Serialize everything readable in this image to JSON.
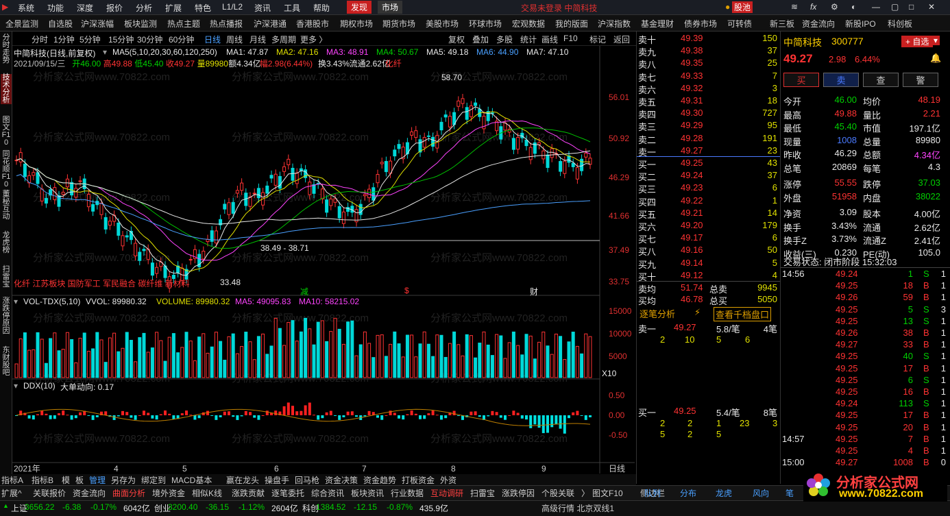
{
  "menu": {
    "items": [
      "系统",
      "功能",
      "深度",
      "报价",
      "分析",
      "扩展",
      "特色",
      "L1/L2",
      "资讯",
      "工具",
      "帮助"
    ],
    "discover": "发现",
    "market": "市场",
    "center": "交易未登录   中简科技",
    "gupool": "股池"
  },
  "tabs": [
    "全景监测",
    "自选股",
    "沪深涨幅",
    "板块监测",
    "热点主题",
    "热点播报",
    "沪深港通",
    "香港股市",
    "期权市场",
    "期货市场",
    "美股市场",
    "环球市场",
    "宏观数据",
    "我的版面",
    "沪深指数",
    "基金理财",
    "债券市场",
    "可转债",
    "新三板",
    "资金流向",
    "新股IPO",
    "科创板"
  ],
  "leftbar": [
    "分时走势",
    "技术分析",
    "图文F10",
    "同花顺F10",
    "董秘互动",
    "龙虎榜",
    "扫雷宝",
    "涨跌停原因",
    "东财股吧"
  ],
  "chart_tb": {
    "items": [
      "分时",
      "1分钟",
      "5分钟",
      "15分钟",
      "30分钟",
      "60分钟",
      "日线",
      "周线",
      "月线",
      "多周期",
      "更多 〉"
    ],
    "right": [
      "复权",
      "叠加",
      "多股",
      "统计",
      "画线",
      "F10",
      "标记",
      "返回"
    ]
  },
  "main": {
    "title": "中简科技(日线,前复权)",
    "ma_label": "MA5(5,10,20,30,60,120,250)",
    "ma": [
      {
        "t": "MA1: 47.87",
        "c": "#e8e8e8"
      },
      {
        "t": "MA2: 47.16",
        "c": "#e0e000"
      },
      {
        "t": "MA3: 48.91",
        "c": "#ff44ff"
      },
      {
        "t": "MA4: 50.67",
        "c": "#00d000"
      },
      {
        "t": "MA5: 49.18",
        "c": "#e8e8e8"
      },
      {
        "t": "MA6: 44.90",
        "c": "#4aa0ff"
      },
      {
        "t": "MA7: 47.10",
        "c": "#e8e8e8"
      }
    ],
    "info": [
      {
        "t": "2021/09/15/三",
        "c": "#c0c0c0"
      },
      {
        "t": "开46.00",
        "c": "#00d000"
      },
      {
        "t": "高49.88",
        "c": "#ff3333"
      },
      {
        "t": "低45.40",
        "c": "#00d000"
      },
      {
        "t": "收49.27",
        "c": "#ff3333"
      },
      {
        "t": "量89980",
        "c": "#e0e000"
      },
      {
        "t": "额4.34亿",
        "c": "#e8e8e8"
      },
      {
        "t": "幅2.98(6.44%)",
        "c": "#ff3333"
      },
      {
        "t": "换3.43%",
        "c": "#e8e8e8"
      },
      {
        "t": "流通2.62亿",
        "c": "#e8e8e8"
      },
      {
        "t": "化纤",
        "c": "#ff3333"
      }
    ],
    "yticks": [
      "56.01",
      "50.92",
      "46.29",
      "41.66",
      "37.49",
      "33.75"
    ],
    "high_label": "58.70",
    "low_label": "33.48",
    "range_label": "38.49 - 38.71",
    "concepts": "化纤  江苏板块  国防军工  军民融合  碳纤维  新材料",
    "markers": [
      "减",
      "$",
      "财"
    ]
  },
  "vol": {
    "title": "VOL-TDX(5,10)",
    "vvol": "VVOL: 89980.32",
    "volume": "VOLUME: 89980.32",
    "ma5": "MA5: 49095.83",
    "ma10": "MA10: 58215.02",
    "yticks": [
      "15000",
      "10000",
      "5000"
    ],
    "unit": "X10"
  },
  "ddx": {
    "title": "DDX(10)",
    "sub": "大单动向: 0.17",
    "yticks": [
      "0.50",
      "0.00",
      "-0.50"
    ]
  },
  "xaxis": {
    "labels": [
      "2021年",
      "4",
      "5",
      "6",
      "7",
      "8",
      "9"
    ],
    "period": "日线"
  },
  "orderbook": {
    "asks": [
      [
        "卖十",
        "49.39",
        "150"
      ],
      [
        "卖九",
        "49.38",
        "37"
      ],
      [
        "卖八",
        "49.35",
        "25"
      ],
      [
        "卖七",
        "49.33",
        "7"
      ],
      [
        "卖六",
        "49.32",
        "3"
      ],
      [
        "卖五",
        "49.31",
        "18"
      ],
      [
        "卖四",
        "49.30",
        "727"
      ],
      [
        "卖三",
        "49.29",
        "95"
      ],
      [
        "卖二",
        "49.28",
        "191"
      ],
      [
        "卖一",
        "49.27",
        "23"
      ]
    ],
    "bids": [
      [
        "买一",
        "49.25",
        "43"
      ],
      [
        "买二",
        "49.24",
        "37"
      ],
      [
        "买三",
        "49.23",
        "6"
      ],
      [
        "买四",
        "49.22",
        "1"
      ],
      [
        "买五",
        "49.21",
        "14"
      ],
      [
        "买六",
        "49.20",
        "179"
      ],
      [
        "买七",
        "49.17",
        "6"
      ],
      [
        "买八",
        "49.16",
        "50"
      ],
      [
        "买九",
        "49.14",
        "5"
      ],
      [
        "买十",
        "49.12",
        "4"
      ]
    ],
    "summary": [
      [
        "卖均",
        "51.74",
        "总卖",
        "9945"
      ],
      [
        "买均",
        "46.78",
        "总买",
        "5050"
      ]
    ],
    "tab1": "逐笔分析",
    "tab2": "查看千档盘口",
    "sell1": {
      "label": "卖一",
      "price": "49.27",
      "per": "5.8/笔",
      "n": "4笔",
      "q": [
        "2",
        "10",
        "5",
        "6"
      ]
    },
    "buy1": {
      "label": "买一",
      "price": "49.25",
      "per": "5.4/笔",
      "n": "8笔",
      "q1": [
        "2",
        "2",
        "1",
        "23",
        "3"
      ],
      "q2": [
        "5",
        "2",
        "5"
      ]
    }
  },
  "right": {
    "name": "中简科技",
    "code": "300777",
    "addbtn": "+ 自选",
    "price": "49.27",
    "chg": "2.98",
    "pct": "6.44%",
    "btns": [
      "买",
      "卖",
      "查",
      "警"
    ],
    "rows": [
      [
        "今开",
        "46.00",
        "均价",
        "48.19"
      ],
      [
        "最高",
        "49.88",
        "量比",
        "2.21"
      ],
      [
        "最低",
        "45.40",
        "市值",
        "197.1亿"
      ],
      [
        "现量",
        "1008",
        "总量",
        "89980"
      ],
      [
        "昨收",
        "46.29",
        "总额",
        "4.34亿"
      ],
      [
        "总笔",
        "20869",
        "每笔",
        "4.3"
      ],
      [
        "涨停",
        "55.55",
        "跌停",
        "37.03"
      ],
      [
        "外盘",
        "51958",
        "内盘",
        "38022"
      ],
      [
        "净资",
        "3.09",
        "股本",
        "4.00亿"
      ],
      [
        "换手",
        "3.43%",
        "流通",
        "2.62亿"
      ],
      [
        "换手Z",
        "3.73%",
        "流通Z",
        "2.41亿"
      ],
      [
        "收益(三)",
        "0.230",
        "PE(动)",
        "105.0"
      ]
    ],
    "status": "交易状态: 闭市阶段 15:32:03",
    "ticks": [
      [
        "14:56",
        "49.24",
        "1",
        "S",
        "1"
      ],
      [
        "",
        "49.25",
        "18",
        "B",
        "1"
      ],
      [
        "",
        "49.26",
        "59",
        "B",
        "1"
      ],
      [
        "",
        "49.25",
        "5",
        "S",
        "3"
      ],
      [
        "",
        "49.25",
        "13",
        "S",
        "1"
      ],
      [
        "",
        "49.26",
        "38",
        "B",
        "1"
      ],
      [
        "",
        "49.27",
        "33",
        "B",
        "1"
      ],
      [
        "",
        "49.25",
        "40",
        "S",
        "1"
      ],
      [
        "",
        "49.25",
        "17",
        "B",
        "1"
      ],
      [
        "",
        "49.25",
        "6",
        "S",
        "1"
      ],
      [
        "",
        "49.25",
        "16",
        "B",
        "1"
      ],
      [
        "",
        "49.24",
        "113",
        "S",
        "1"
      ],
      [
        "",
        "49.25",
        "17",
        "B",
        "1"
      ],
      [
        "",
        "49.25",
        "20",
        "B",
        "1"
      ],
      [
        "14:57",
        "49.25",
        "7",
        "B",
        "1"
      ],
      [
        "",
        "49.25",
        "4",
        "B",
        "1"
      ],
      [
        "15:00",
        "49.27",
        "1008",
        "B",
        "0"
      ]
    ]
  },
  "bottom_tabs": [
    "指标A",
    "指标B",
    "模",
    "板",
    "管理",
    "另存为",
    "绑定到",
    "MACD基本",
    "赢在龙头",
    "操盘手",
    "回马枪",
    "资金决策",
    "资金趋势",
    "打板资金",
    "外资"
  ],
  "bottom2": [
    "扩展^",
    "关联报价",
    "资金流向",
    "曲面分析",
    "境外资金",
    "相似K线",
    "涨跌贡献",
    "逐笔委托",
    "综合资讯",
    "板块资讯",
    "行业数据",
    "互动调研",
    "扫雷宝",
    "涨跌停因",
    "个股关联",
    "〉",
    "图文F10",
    "侧边栏"
  ],
  "bottom2r": [
    "队列",
    "分布",
    "龙虎",
    "风向",
    "笔"
  ],
  "status": {
    "items": [
      {
        "t": "上证",
        "c": "#e8e8e8"
      },
      {
        "t": "3656.22",
        "c": "#00d000"
      },
      {
        "t": "-6.38",
        "c": "#00d000"
      },
      {
        "t": "-0.17%",
        "c": "#00d000"
      },
      {
        "t": "6042亿",
        "c": "#e8e8e8"
      },
      {
        "t": "创业",
        "c": "#e8e8e8"
      },
      {
        "t": "3200.40",
        "c": "#00d000"
      },
      {
        "t": "-36.15",
        "c": "#00d000"
      },
      {
        "t": "-1.12%",
        "c": "#00d000"
      },
      {
        "t": "2604亿",
        "c": "#e8e8e8"
      },
      {
        "t": "科创",
        "c": "#e8e8e8"
      },
      {
        "t": "1384.52",
        "c": "#00d000"
      },
      {
        "t": "-12.15",
        "c": "#00d000"
      },
      {
        "t": "-0.87%",
        "c": "#00d000"
      },
      {
        "t": "435.9亿",
        "c": "#e8e8e8"
      }
    ],
    "right": "高级行情  北京双线1"
  },
  "watermark": "分析家公式网www.70822.com",
  "logo": {
    "line1": "分析家公式网",
    "line2": "www.70822.com"
  },
  "colors": {
    "up": "#ff3333",
    "down": "#00d8d8",
    "bg": "#000000"
  }
}
